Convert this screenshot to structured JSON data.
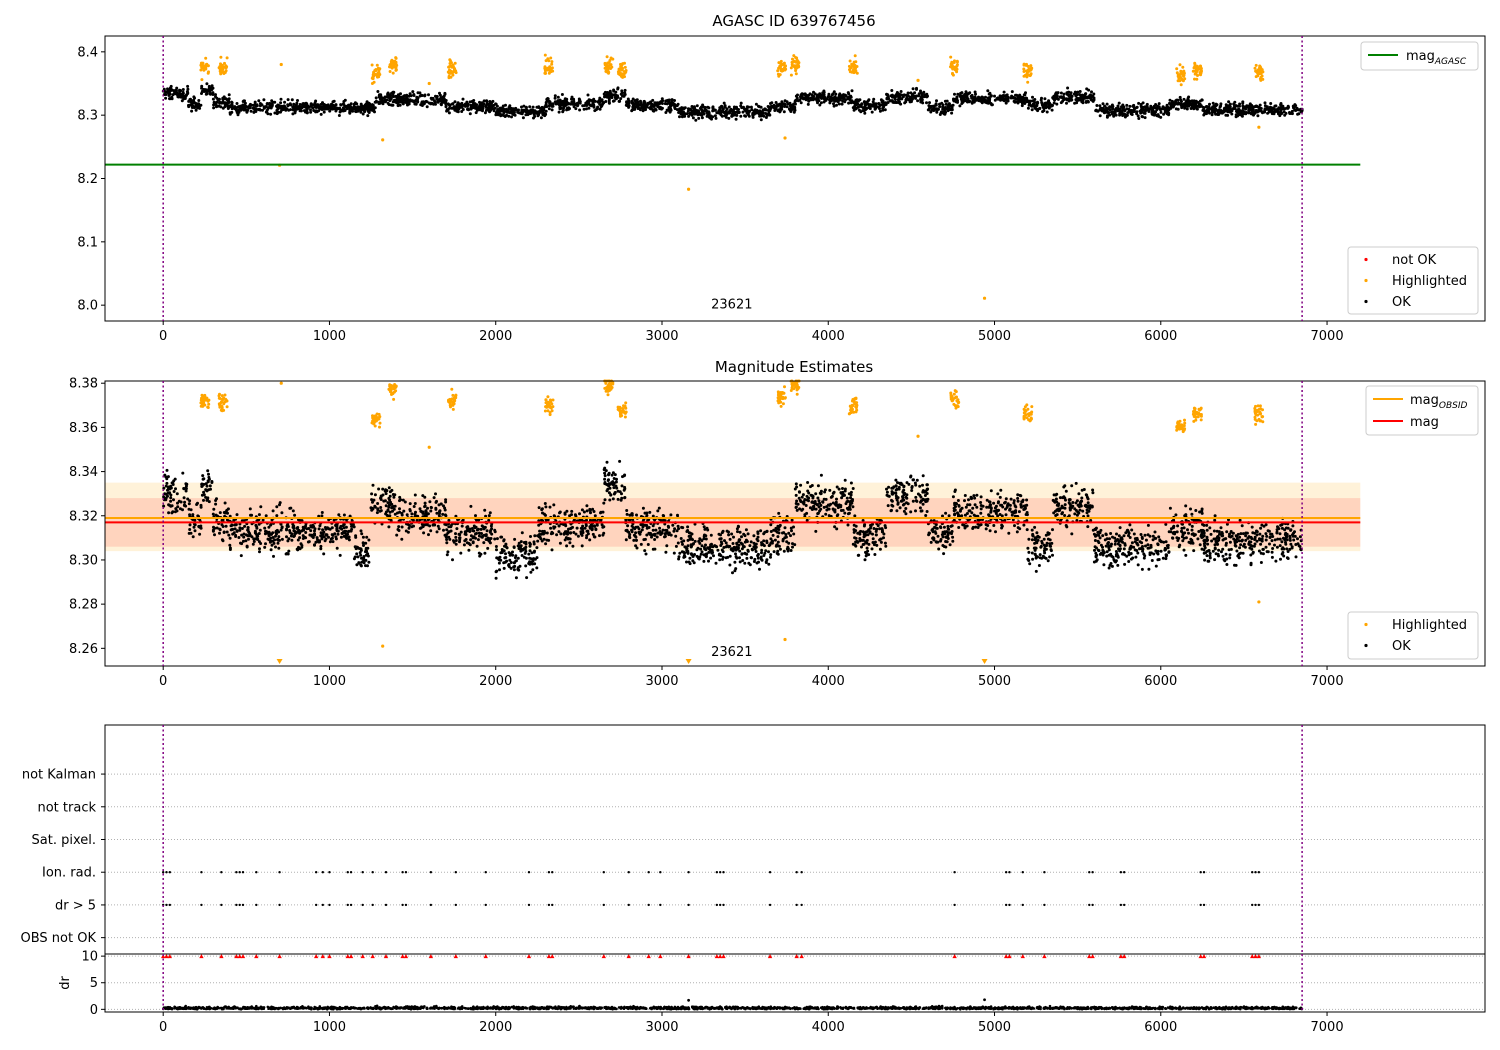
{
  "chart_data": [
    {
      "type": "scatter",
      "title": "AGASC ID 639767456",
      "xlabel": "",
      "ylabel": "",
      "xlim": [
        -350,
        7950
      ],
      "ylim": [
        7.975,
        8.425
      ],
      "xticks": [
        0,
        1000,
        2000,
        3000,
        4000,
        5000,
        6000,
        7000
      ],
      "yticks": [
        8.0,
        8.1,
        8.2,
        8.3,
        8.4
      ],
      "ytick_format": 1,
      "obs_boundaries": [
        0,
        6850
      ],
      "obs_label": {
        "text": "23621",
        "x": 3420,
        "y": 7.995
      },
      "reference_lines": [
        {
          "name": "mag",
          "subscript": "AGASC",
          "y": 8.222,
          "x_range": [
            -350,
            7200
          ],
          "color": "#008000"
        }
      ],
      "legend_top": {
        "position": "upper right",
        "entries": [
          {
            "label": "mag",
            "subscript": "AGASC",
            "kind": "line",
            "color": "#008000"
          }
        ]
      },
      "legend_bottom": {
        "position": "lower right",
        "entries": [
          {
            "label": "not OK",
            "kind": "dot",
            "color": "#ff0000"
          },
          {
            "label": "Highlighted",
            "kind": "dot",
            "color": "#ffa500"
          },
          {
            "label": "OK",
            "kind": "dot",
            "color": "#000000"
          }
        ]
      },
      "series": [
        {
          "name": "OK",
          "color": "#000000",
          "segments": [
            [
              0,
              150,
              8.334
            ],
            [
              150,
              230,
              8.318
            ],
            [
              230,
              300,
              8.338
            ],
            [
              300,
              400,
              8.322
            ],
            [
              400,
              1280,
              8.312
            ],
            [
              1280,
              1700,
              8.325
            ],
            [
              1700,
              2000,
              8.314
            ],
            [
              2000,
              2300,
              8.306
            ],
            [
              2300,
              2650,
              8.318
            ],
            [
              2650,
              2780,
              8.331
            ],
            [
              2780,
              3100,
              8.316
            ],
            [
              3100,
              3650,
              8.305
            ],
            [
              3650,
              3800,
              8.313
            ],
            [
              3800,
              4150,
              8.327
            ],
            [
              4150,
              4350,
              8.316
            ],
            [
              4350,
              4600,
              8.328
            ],
            [
              4600,
              4750,
              8.312
            ],
            [
              4750,
              5200,
              8.326
            ],
            [
              5200,
              5350,
              8.316
            ],
            [
              5350,
              5600,
              8.328
            ],
            [
              5600,
              6050,
              8.308
            ],
            [
              6050,
              6250,
              8.318
            ],
            [
              6250,
              6850,
              8.309
            ]
          ]
        },
        {
          "name": "Highlighted",
          "color": "#ffa500",
          "clusters": [
            [
              250,
              8.375
            ],
            [
              360,
              8.375
            ],
            [
              1280,
              8.365
            ],
            [
              1380,
              8.38
            ],
            [
              1740,
              8.375
            ],
            [
              2320,
              8.375
            ],
            [
              2680,
              8.38
            ],
            [
              2760,
              8.37
            ],
            [
              3720,
              8.375
            ],
            [
              3800,
              8.38
            ],
            [
              4150,
              8.373
            ],
            [
              4760,
              8.375
            ],
            [
              5200,
              8.368
            ],
            [
              6120,
              8.365
            ],
            [
              6220,
              8.37
            ],
            [
              6590,
              8.368
            ]
          ],
          "points": [
            [
              710,
              8.38
            ],
            [
              700,
              8.221
            ],
            [
              1320,
              8.261
            ],
            [
              1600,
              8.35
            ],
            [
              3160,
              8.183
            ],
            [
              3740,
              8.264
            ],
            [
              4940,
              8.011
            ],
            [
              6590,
              8.281
            ],
            [
              4540,
              8.355
            ]
          ]
        }
      ]
    },
    {
      "type": "scatter",
      "title": "Magnitude Estimates",
      "xlabel": "",
      "ylabel": "",
      "xlim": [
        -350,
        7950
      ],
      "ylim": [
        8.252,
        8.381
      ],
      "xticks": [
        0,
        1000,
        2000,
        3000,
        4000,
        5000,
        6000,
        7000
      ],
      "yticks": [
        8.26,
        8.28,
        8.3,
        8.32,
        8.34,
        8.36,
        8.38
      ],
      "ytick_format": 2,
      "obs_boundaries": [
        0,
        6850
      ],
      "obs_label": {
        "text": "23621",
        "x": 3420,
        "y": 8.2565
      },
      "bands": [
        {
          "color": "#ffa500",
          "opacity": 0.15,
          "y_range": [
            8.304,
            8.335
          ],
          "x_range": [
            -350,
            7200
          ]
        },
        {
          "color": "#ff0000",
          "opacity": 0.12,
          "y_range": [
            8.306,
            8.328
          ],
          "x_range": [
            -350,
            7200
          ]
        }
      ],
      "reference_lines": [
        {
          "name": "mag",
          "subscript": "OBSID",
          "y": 8.319,
          "x_range": [
            -350,
            7200
          ],
          "color": "#ffa500"
        },
        {
          "name": "mag",
          "y": 8.317,
          "x_range": [
            -350,
            7200
          ],
          "color": "#ff0000"
        }
      ],
      "legend_top": {
        "position": "upper right",
        "entries": [
          {
            "label": "mag",
            "subscript": "OBSID",
            "kind": "line",
            "color": "#ffa500"
          },
          {
            "label": "mag",
            "kind": "line",
            "color": "#ff0000"
          }
        ]
      },
      "legend_bottom": {
        "position": "lower right",
        "entries": [
          {
            "label": "Highlighted",
            "kind": "dot",
            "color": "#ffa500"
          },
          {
            "label": "OK",
            "kind": "dot",
            "color": "#000000"
          }
        ]
      },
      "series": [
        {
          "name": "OK",
          "color": "#000000",
          "segments": [
            [
              0,
              150,
              8.33
            ],
            [
              150,
              230,
              8.318
            ],
            [
              230,
              300,
              8.332
            ],
            [
              300,
              400,
              8.318
            ],
            [
              400,
              1150,
              8.313
            ],
            [
              1150,
              1250,
              8.304
            ],
            [
              1250,
              1400,
              8.326
            ],
            [
              1400,
              1700,
              8.32
            ],
            [
              1700,
              2000,
              8.312
            ],
            [
              2000,
              2250,
              8.302
            ],
            [
              2250,
              2650,
              8.316
            ],
            [
              2650,
              2780,
              8.334
            ],
            [
              2780,
              3100,
              8.314
            ],
            [
              3100,
              3650,
              8.306
            ],
            [
              3650,
              3800,
              8.312
            ],
            [
              3800,
              4150,
              8.326
            ],
            [
              4150,
              4350,
              8.31
            ],
            [
              4350,
              4600,
              8.33
            ],
            [
              4600,
              4750,
              8.312
            ],
            [
              4750,
              5200,
              8.322
            ],
            [
              5200,
              5350,
              8.306
            ],
            [
              5350,
              5600,
              8.324
            ],
            [
              5600,
              6050,
              8.306
            ],
            [
              6050,
              6250,
              8.314
            ],
            [
              6250,
              6850,
              8.308
            ]
          ]
        },
        {
          "name": "Highlighted",
          "color": "#ffa500",
          "clusters": [
            [
              250,
              8.372
            ],
            [
              360,
              8.372
            ],
            [
              1280,
              8.363
            ],
            [
              1380,
              8.378
            ],
            [
              1740,
              8.372
            ],
            [
              2320,
              8.37
            ],
            [
              2680,
              8.379
            ],
            [
              2760,
              8.368
            ],
            [
              3720,
              8.374
            ],
            [
              3800,
              8.379
            ],
            [
              4150,
              8.37
            ],
            [
              4760,
              8.373
            ],
            [
              5200,
              8.366
            ],
            [
              6120,
              8.361
            ],
            [
              6220,
              8.366
            ],
            [
              6590,
              8.366
            ]
          ],
          "points": [
            [
              710,
              8.38
            ],
            [
              1320,
              8.261
            ],
            [
              1600,
              8.351
            ],
            [
              3740,
              8.264
            ],
            [
              4540,
              8.356
            ],
            [
              6590,
              8.281
            ]
          ],
          "offscale_low": [
            700,
            3160,
            4940
          ]
        }
      ]
    },
    {
      "type": "scatter",
      "title": "",
      "xlim": [
        -350,
        7950
      ],
      "ylim": [
        -0.5,
        6.5
      ],
      "ycategories": [
        "OBS not OK",
        "dr > 5",
        "Ion. rad.",
        "Sat. pixel.",
        "not track",
        "not Kalman"
      ],
      "obs_boundaries": [
        0,
        6850
      ],
      "series": [
        {
          "name": "dr > 5",
          "color": "#000000",
          "x": [
            0,
            20,
            40,
            230,
            350,
            440,
            460,
            480,
            560,
            700,
            920,
            960,
            1000,
            1110,
            1130,
            1200,
            1260,
            1340,
            1440,
            1460,
            1610,
            1760,
            1940,
            2200,
            2320,
            2340,
            2650,
            2800,
            2920,
            2990,
            3160,
            3330,
            3350,
            3370,
            3650,
            3810,
            3840,
            4760,
            5070,
            5090,
            5170,
            5300,
            5570,
            5590,
            5760,
            5780,
            6240,
            6260,
            6550,
            6570,
            6590
          ]
        },
        {
          "name": "Ion. rad.",
          "color": "#000000",
          "x": [
            0,
            20,
            40,
            230,
            350,
            440,
            460,
            480,
            560,
            700,
            920,
            960,
            1000,
            1110,
            1130,
            1200,
            1260,
            1340,
            1440,
            1460,
            1610,
            1760,
            1940,
            2200,
            2320,
            2340,
            2650,
            2800,
            2920,
            2990,
            3160,
            3330,
            3350,
            3370,
            3650,
            3810,
            3840,
            4760,
            5070,
            5090,
            5170,
            5300,
            5570,
            5590,
            5760,
            5780,
            6240,
            6260,
            6550,
            6570,
            6590
          ]
        }
      ]
    },
    {
      "type": "scatter",
      "title": "",
      "xlabel": "",
      "ylabel": "dr",
      "xlim": [
        -350,
        7950
      ],
      "ylim": [
        -0.5,
        10.4
      ],
      "xticks": [
        0,
        1000,
        2000,
        3000,
        4000,
        5000,
        6000,
        7000
      ],
      "yticks": [
        0,
        5,
        10
      ],
      "obs_boundaries": [
        0,
        6850
      ],
      "series": [
        {
          "name": "dr",
          "color": "#000000",
          "y_range": [
            0.0,
            1.2
          ],
          "outliers": [
            [
              3160,
              1.7
            ],
            [
              4940,
              1.8
            ]
          ]
        },
        {
          "name": "dr > 5",
          "color": "#ff0000",
          "marker": "triangle",
          "y": 10,
          "x": [
            0,
            20,
            40,
            230,
            350,
            440,
            460,
            480,
            560,
            700,
            920,
            960,
            1000,
            1110,
            1130,
            1200,
            1260,
            1340,
            1440,
            1460,
            1610,
            1760,
            1940,
            2200,
            2320,
            2340,
            2650,
            2800,
            2920,
            2990,
            3160,
            3330,
            3350,
            3370,
            3650,
            3810,
            3840,
            4760,
            5070,
            5090,
            5170,
            5300,
            5570,
            5590,
            5760,
            5780,
            6240,
            6260,
            6550,
            6570,
            6590
          ]
        }
      ]
    }
  ]
}
